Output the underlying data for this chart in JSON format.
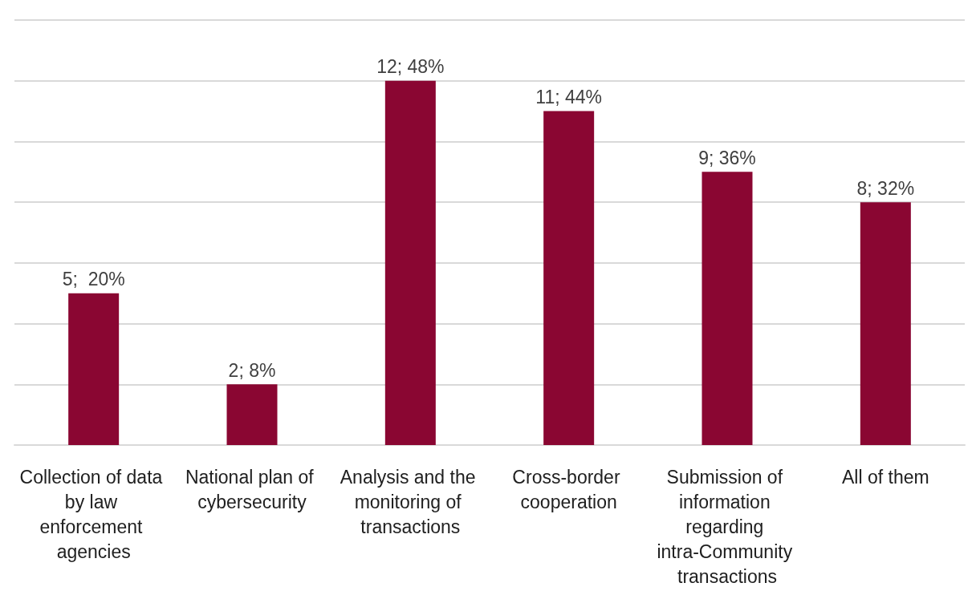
{
  "chart_data": {
    "type": "bar",
    "categories": [
      "Collection of data by law enforcement agencies",
      "National plan of cybersecurity",
      "Analysis and the monitoring of transactions",
      "Cross-border cooperation",
      "Submission of information regarding intra-Community transactions",
      "All of them"
    ],
    "values": [
      5,
      2,
      12,
      11,
      9,
      8
    ],
    "value_labels": [
      "5;  20%",
      "2; 8%",
      "12; 48%",
      "11; 44%",
      "9; 36%",
      "8; 32%"
    ],
    "color": "#8a0632",
    "ylim": [
      0,
      14
    ],
    "yticks": [
      {
        "value": 0,
        "label": null
      },
      {
        "value": 2,
        "label": null
      },
      {
        "value": 4,
        "label": null
      },
      {
        "value": 6,
        "label": null
      },
      {
        "value": 8,
        "label": null
      },
      {
        "value": 10,
        "label": null
      },
      {
        "value": 12,
        "label": null
      },
      {
        "value": 14,
        "label": null
      }
    ],
    "grid": "y",
    "tick_labels": "x"
  }
}
